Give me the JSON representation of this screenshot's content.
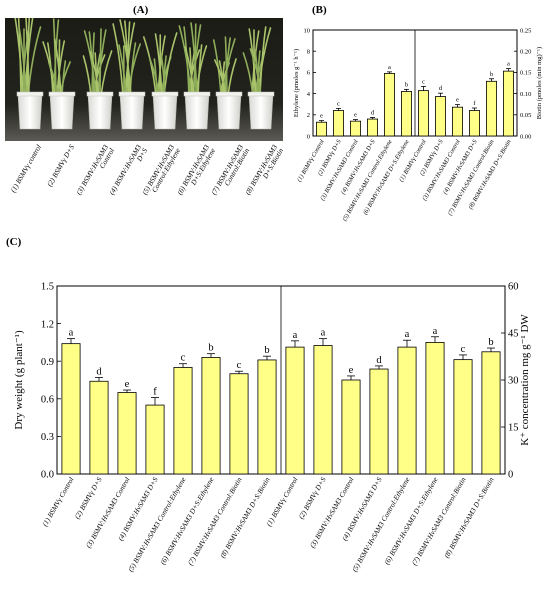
{
  "panels": {
    "a_label": "(A)",
    "b_label": "(B)",
    "c_label": "(C)"
  },
  "photo": {
    "labels": [
      {
        "lines": [
          "(1) BSMVγ control"
        ]
      },
      {
        "lines": [
          "(2) BSMVγ D+S"
        ]
      },
      {
        "lines": [
          "(3) BSMV:HvSAM3",
          "Control"
        ]
      },
      {
        "lines": [
          "(4) BSMV:HvSAM3",
          "D+S"
        ]
      },
      {
        "lines": [
          "(5) BSMV:HvSAM3",
          "Control:Ethylene"
        ]
      },
      {
        "lines": [
          "(6) BSMV:HvSAM3",
          "D+S:Ethylene"
        ]
      },
      {
        "lines": [
          "(7) BSMV:HvSAM3",
          "Control:Biotin"
        ]
      },
      {
        "lines": [
          "(8) BSMV:HvSAM3",
          "D+S:Biotin"
        ]
      }
    ]
  },
  "chart_data": [
    {
      "id": "B",
      "type": "bar",
      "ylabel_left": "Ethylene  (pmoles g⁻¹ h⁻¹)",
      "ylabel_right": "Biotin  (pmoles (min mg)⁻¹)",
      "ylim_left": [
        0,
        10
      ],
      "yticks_left": [
        0,
        2,
        4,
        6,
        8,
        10
      ],
      "ylim_right": [
        0,
        0.25
      ],
      "yticks_right": [
        "0.00",
        "0.05",
        "0.10",
        "0.15",
        "0.20",
        "0.25"
      ],
      "bar_color": "#ffff88",
      "groups": [
        {
          "axis": "left",
          "series": "Ethylene",
          "categories": [
            "(1) BSMVγ Control",
            "(2) BSMVγ D+S",
            "(3) BSMV:HvSAM3  Control",
            "(4) BSMV:HvSAM3 D+S",
            "(5) BSMV:HvSAM3  Control:Ethylene",
            "(6) BSMV:HvSAM3 D+S:Ethylene"
          ],
          "values": [
            1.3,
            2.4,
            1.4,
            1.6,
            5.9,
            4.2
          ],
          "errors": [
            0.15,
            0.2,
            0.15,
            0.15,
            0.15,
            0.2
          ],
          "letters": [
            "e",
            "c",
            "e",
            "d",
            "a",
            "b"
          ]
        },
        {
          "axis": "right",
          "series": "Biotin",
          "categories": [
            "(1) BSMVγ Control",
            "(2) BSMVγ D+S",
            "(3) BSMV:HvSAM3 Control",
            "(4) BSMV:HvSAM3 D+S",
            "(7) BSMV:HvSAM3 Control:Biotin",
            "(8) BSMV:HvSAM3 D+S:Biotin"
          ],
          "values": [
            0.107,
            0.093,
            0.068,
            0.06,
            0.129,
            0.153
          ],
          "errors": [
            0.01,
            0.008,
            0.006,
            0.006,
            0.006,
            0.006
          ],
          "letters": [
            "c",
            "d",
            "e",
            "f",
            "b",
            "a"
          ]
        }
      ]
    },
    {
      "id": "C",
      "type": "bar",
      "ylabel_left": "Dry weight (g plant⁻¹)",
      "ylabel_right": "K⁺ concentration mg g⁻¹ DW",
      "ylim_left": [
        0,
        1.5
      ],
      "yticks_left": [
        "0.0",
        "0.3",
        "0.6",
        "0.9",
        "1.2",
        "1.5"
      ],
      "ylim_right": [
        0,
        60
      ],
      "yticks_right": [
        "0",
        "15",
        "30",
        "45",
        "60"
      ],
      "bar_color": "#ffff88",
      "groups": [
        {
          "axis": "left",
          "series": "Dry weight",
          "categories": [
            "(1) BSMVγ Control",
            "(2) BSMVγ D+S",
            "(3) BSMV:HvSAM3 Control",
            "(4) BSMV:HvSAM3 D+S",
            "(5) BSMV:HvSAM3 Control:Ethylene",
            "(6) BSMV:HvSAM3 D+S:Ethylene",
            "(7) BSMV:HvSAM3 Control:Biotin",
            "(8) BSMV:HvSAM3 D+S:Biotin"
          ],
          "values": [
            1.04,
            0.74,
            0.65,
            0.55,
            0.85,
            0.93,
            0.8,
            0.91
          ],
          "errors": [
            0.04,
            0.03,
            0.02,
            0.06,
            0.03,
            0.03,
            0.02,
            0.03
          ],
          "letters": [
            "a",
            "d",
            "e",
            "f",
            "c",
            "b",
            "c",
            "b"
          ]
        },
        {
          "axis": "right",
          "series": "K⁺ concentration",
          "categories": [
            "(1) BSMVγ Control",
            "(2) BSMVγ D+S",
            "(3) BSMV:HvSAM3 Control",
            "(4) BSMV:HvSAM3 D+S",
            "(5) BSMV:HvSAM3 Control:Ethylene",
            "(6) BSMV:HvSAM3 D+S:Ethylene",
            "(7) BSMV:HvSAM3 Control:Biotin",
            "(8) BSMV:HvSAM3 D+S:Biotin"
          ],
          "values": [
            40.5,
            41,
            30,
            33.5,
            40.5,
            42,
            36.5,
            39
          ],
          "errors": [
            2,
            2.2,
            1.3,
            1,
            2.2,
            1.8,
            1.5,
            1.2
          ],
          "letters": [
            "a",
            "a",
            "e",
            "d",
            "a",
            "a",
            "c",
            "b"
          ]
        }
      ]
    }
  ]
}
